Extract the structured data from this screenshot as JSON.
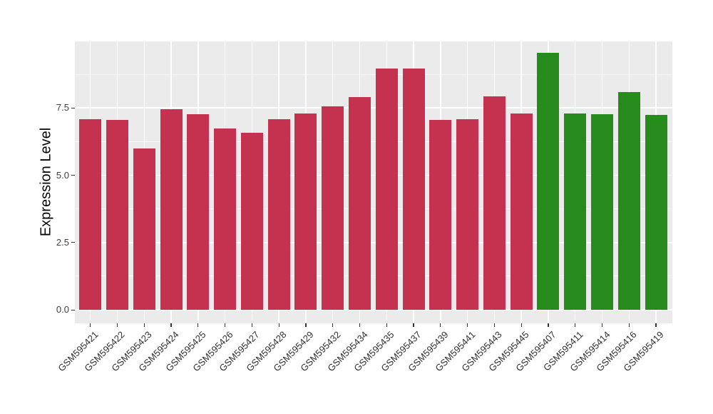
{
  "chart_data": {
    "type": "bar",
    "title": "",
    "xlabel": "",
    "ylabel": "Expression Level",
    "categories": [
      "GSM595421",
      "GSM595422",
      "GSM595423",
      "GSM595424",
      "GSM595425",
      "GSM595426",
      "GSM595427",
      "GSM595428",
      "GSM595429",
      "GSM595432",
      "GSM595434",
      "GSM595435",
      "GSM595437",
      "GSM595439",
      "GSM595441",
      "GSM595443",
      "GSM595445",
      "GSM595407",
      "GSM595411",
      "GSM595414",
      "GSM595416",
      "GSM595419"
    ],
    "values": [
      7.07,
      7.05,
      6.0,
      7.45,
      7.28,
      6.75,
      6.57,
      7.07,
      7.3,
      7.55,
      7.9,
      8.97,
      8.97,
      7.05,
      7.07,
      7.93,
      7.3,
      9.55,
      7.3,
      7.27,
      8.09,
      7.25
    ],
    "bar_groups": [
      "red",
      "red",
      "red",
      "red",
      "red",
      "red",
      "red",
      "red",
      "red",
      "red",
      "red",
      "red",
      "red",
      "red",
      "red",
      "red",
      "red",
      "green",
      "green",
      "green",
      "green",
      "green"
    ],
    "group_colors": {
      "red": "#C43250",
      "green": "#268A1D"
    },
    "yticks": [
      0,
      2.5,
      5,
      7.5
    ],
    "ytick_labels": [
      "0.0",
      "2.5",
      "5.0",
      "7.5"
    ],
    "ylim": [
      -0.5,
      10.03
    ],
    "x_tick_rotation": 45,
    "grid": "white major and minor horizontal lines; white vertical lines at category centers",
    "legend": "none",
    "panel_background": "#EBEBEB",
    "figure_background": "#FFFFFF",
    "axis_text_color": "#303030"
  }
}
